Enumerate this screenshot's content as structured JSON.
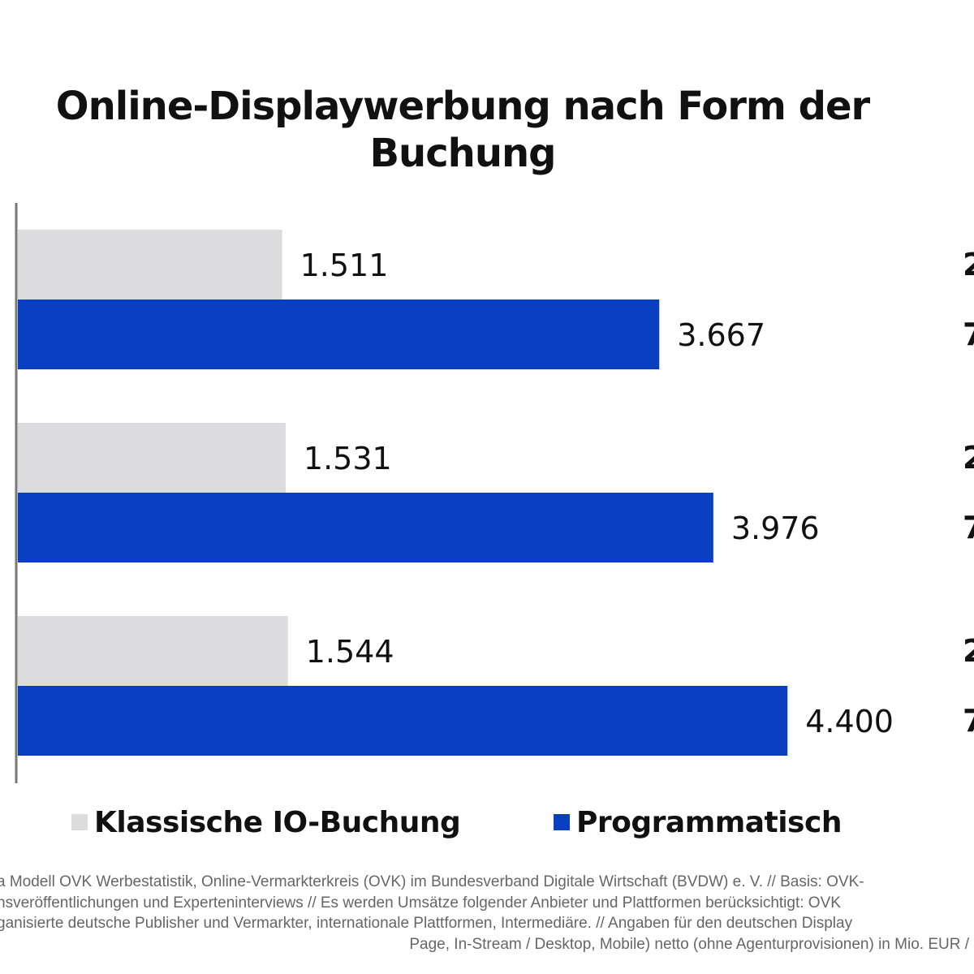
{
  "title_lines": [
    "Online-Displaywerbung nach Form der",
    "Buchung"
  ],
  "legend": [
    {
      "label": "Klassische IO-Buchung",
      "color": "#dcdcde"
    },
    {
      "label": "Programmatisch",
      "color": "#0a3fc2"
    }
  ],
  "right_cutoff_labels": [
    "2",
    "7",
    "2",
    "7",
    "2",
    "7"
  ],
  "source_lines": [
    "a Modell OVK Werbestatistik, Online-Vermarkterkreis (OVK) im Bundesverband Digitale Wirtschaft (BVDW) e. V. // Basis: OVK-",
    "nsveröffentlichungen und Experteninterviews // Es werden Umsätze folgender Anbieter und Plattformen berücksichtigt: OVK",
    "ganisierte deutsche Publisher und Vermarkter, internationale Plattformen, Intermediäre. // Angaben für den deutschen Display",
    "Page, In-Stream / Desktop, Mobile) netto (ohne Agenturprovisionen) in Mio. EUR /"
  ],
  "chart_data": {
    "type": "bar",
    "orientation": "horizontal",
    "title": "Online-Displaywerbung nach Form der Buchung",
    "categories": [
      "",
      "",
      ""
    ],
    "series": [
      {
        "name": "Klassische IO-Buchung",
        "color": "#dcdcde",
        "values": [
          1511,
          1531,
          1544
        ],
        "labels": [
          "1.511",
          "1.531",
          "1.544"
        ]
      },
      {
        "name": "Programmatisch",
        "color": "#0a3fc2",
        "values": [
          3667,
          3976,
          4400
        ],
        "labels": [
          "3.667",
          "3.976",
          "4.400"
        ]
      }
    ],
    "xlim": [
      0,
      5500
    ],
    "grid": false,
    "legend_position": "bottom"
  }
}
